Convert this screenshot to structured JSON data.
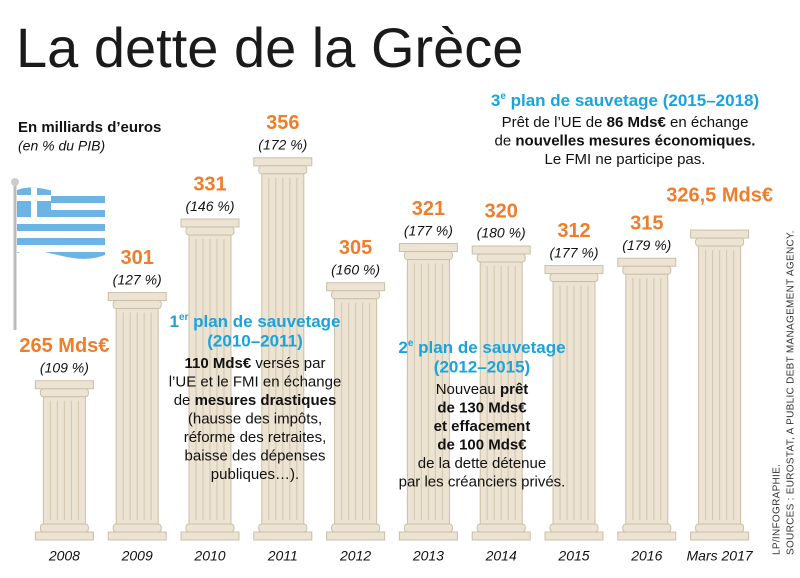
{
  "chart_data": {
    "type": "bar",
    "title": "La dette de la Grèce",
    "subtitle": "En milliards d’euros",
    "subtitle_note": "(en % du PIB)",
    "categories": [
      "2008",
      "2009",
      "2010",
      "2011",
      "2012",
      "2013",
      "2014",
      "2015",
      "2016",
      "Mars 2017"
    ],
    "values": [
      265,
      301,
      331,
      356,
      305,
      321,
      320,
      312,
      315,
      326.5
    ],
    "value_labels": [
      "265 Mds€",
      "301",
      "331",
      "356",
      "305",
      "321",
      "320",
      "312",
      "315",
      "326,5 Mds€"
    ],
    "gdp_share_labels": [
      "(109 %)",
      "(127 %)",
      "(146 %)",
      "(172 %)",
      "(160 %)",
      "(177 %)",
      "(180 %)",
      "(177 %)",
      "(179 %)",
      null
    ],
    "ylim": [
      200,
      380
    ],
    "color": "#ece3d2",
    "value_label_color": "#f07d2a",
    "annotations": [
      {
        "number": "1",
        "suffix": "er",
        "heading": " plan de sauvetage",
        "period": "(2010–2011)",
        "lines": [
          [
            {
              "text": "110  Mds€",
              "bold": true
            },
            " versés par"
          ],
          [
            "l’UE et le FMI en échange"
          ],
          [
            "de ",
            {
              "text": "mesures drastiques",
              "bold": true
            }
          ],
          [
            "(hausse des impôts,"
          ],
          [
            "réforme des retraites,"
          ],
          [
            "baisse des dépenses"
          ],
          [
            "publiques…)."
          ]
        ]
      },
      {
        "number": "2",
        "suffix": "e",
        "heading": " plan de sauvetage",
        "period": "(2012–2015)",
        "lines": [
          [
            "Nouveau ",
            {
              "text": "prêt",
              "bold": true
            }
          ],
          [
            {
              "text": "de 130 Mds€",
              "bold": true
            }
          ],
          [
            {
              "text": "et effacement",
              "bold": true
            }
          ],
          [
            {
              "text": "de 100 Mds€",
              "bold": true
            }
          ],
          [
            "de la dette détenue"
          ],
          [
            "par les créanciers privés."
          ]
        ]
      },
      {
        "number": "3",
        "suffix": "e",
        "heading": " plan de sauvetage (2015–2018)",
        "lines": [
          [
            "Prêt de l’UE de ",
            {
              "text": "86 Mds€",
              "bold": true
            },
            " en échange"
          ],
          [
            "de ",
            {
              "text": "nouvelles mesures économiques.",
              "bold": true
            }
          ],
          [
            "Le FMI ne participe pas."
          ]
        ]
      }
    ],
    "sources": "SOURCES : EUROSTAT, A PUBLIC DEBT MANAGEMENT AGENCY.",
    "credit": "LP/INFOGRAPHIE."
  }
}
